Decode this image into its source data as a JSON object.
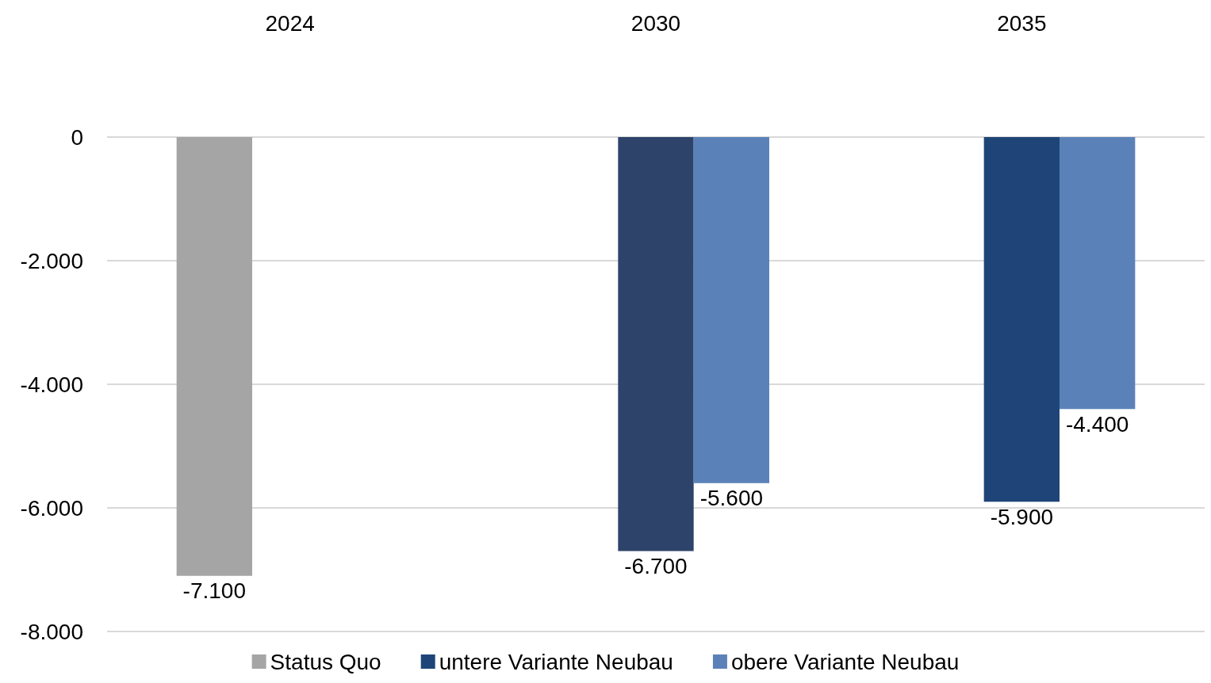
{
  "chart_data": {
    "type": "bar",
    "categories": [
      "2024",
      "2030",
      "2035"
    ],
    "series": [
      {
        "name": "Status Quo",
        "color": "#a5a5a5",
        "values": [
          -7100,
          null,
          null
        ],
        "value_labels": [
          "-7.100",
          null,
          null
        ]
      },
      {
        "name": "untere Variante Neubau",
        "color": "#1f4578",
        "colors": [
          null,
          "#2e4369",
          "#1f4578"
        ],
        "values": [
          null,
          -6700,
          -5900
        ],
        "value_labels": [
          null,
          "-6.700",
          "-5.900"
        ]
      },
      {
        "name": "obere Variante Neubau",
        "color": "#5b82b8",
        "values": [
          null,
          -5600,
          -4400
        ],
        "value_labels": [
          null,
          "-5.600",
          "-4.400"
        ]
      }
    ],
    "ylim": [
      -8000,
      0
    ],
    "yticks": [
      {
        "value": 0,
        "label": "0"
      },
      {
        "value": -2000,
        "label": "-2.000"
      },
      {
        "value": -4000,
        "label": "-4.000"
      },
      {
        "value": -6000,
        "label": "-6.000"
      },
      {
        "value": -8000,
        "label": "-8.000"
      }
    ],
    "grid": "y",
    "legend": "bottom"
  }
}
